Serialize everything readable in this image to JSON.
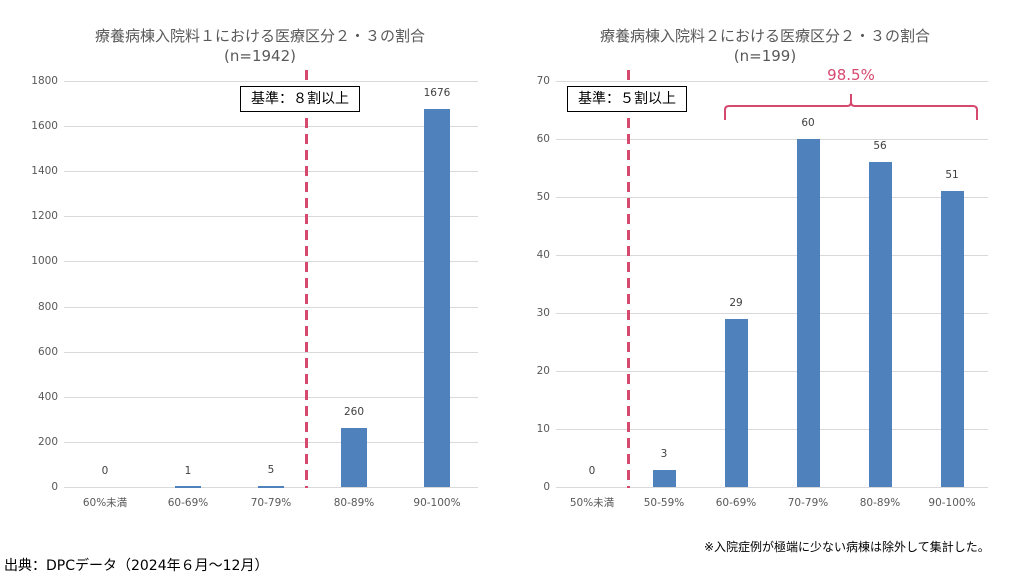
{
  "chart_data": [
    {
      "type": "bar",
      "title": "療養病棟入院料１における医療区分２・３の割合",
      "subtitle": "(n=1942)",
      "categories": [
        "60%未満",
        "60-69%",
        "70-79%",
        "80-89%",
        "90-100%"
      ],
      "values": [
        0,
        1,
        5,
        260,
        1676
      ],
      "yticks": [
        "0",
        "200",
        "400",
        "600",
        "800",
        "1000",
        "1200",
        "1400",
        "1600",
        "1800"
      ],
      "ylim": [
        0,
        1800
      ],
      "grid": true,
      "xlabel": "",
      "ylabel": "",
      "annotations": {
        "criteria": "基準：８割以上",
        "threshold_between": [
          "70-79%",
          "80-89%"
        ]
      },
      "bar_color": "#4f81bd",
      "threshold_color": "#d6496f"
    },
    {
      "type": "bar",
      "title": "療養病棟入院料２における医療区分２・３の割合",
      "subtitle": "(n=199)",
      "categories": [
        "50%未満",
        "50-59%",
        "60-69%",
        "70-79%",
        "80-89%",
        "90-100%"
      ],
      "values": [
        0,
        3,
        29,
        60,
        56,
        51
      ],
      "yticks": [
        "0",
        "10",
        "20",
        "30",
        "40",
        "50",
        "60",
        "70"
      ],
      "ylim": [
        0,
        70
      ],
      "grid": true,
      "xlabel": "",
      "ylabel": "",
      "annotations": {
        "criteria": "基準：５割以上",
        "threshold_between": [
          "50%未満",
          "50-59%"
        ],
        "brace_label": "98.5%",
        "brace_span": [
          "60-69%",
          "90-100%"
        ]
      },
      "bar_color": "#4f81bd",
      "threshold_color": "#d6496f"
    }
  ],
  "footnote": "※入院症例が極端に少ない病棟は除外して集計した。",
  "source": "出典：DPCデータ（2024年６月〜12月）"
}
